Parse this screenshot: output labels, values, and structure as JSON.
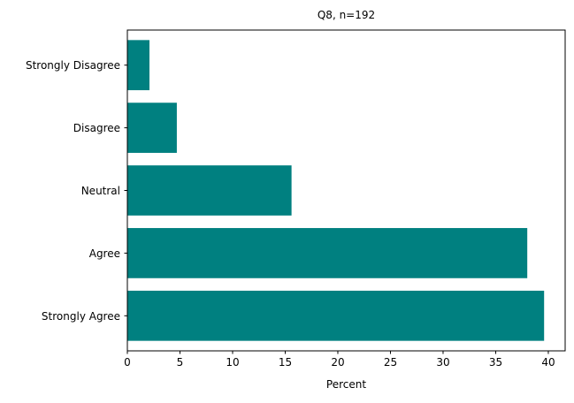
{
  "chart_data": {
    "type": "bar",
    "orientation": "horizontal",
    "title": "Q8, n=192",
    "xlabel": "Percent",
    "ylabel": "",
    "categories": [
      "Strongly Disagree",
      "Disagree",
      "Neutral",
      "Agree",
      "Strongly Agree"
    ],
    "values": [
      2.1,
      4.7,
      15.6,
      38.0,
      39.6
    ],
    "xlim": [
      0,
      41.6
    ],
    "xticks": [
      0,
      5,
      10,
      15,
      20,
      25,
      30,
      35,
      40
    ],
    "grid": false,
    "legend": "none",
    "bar_color": "#008080"
  }
}
